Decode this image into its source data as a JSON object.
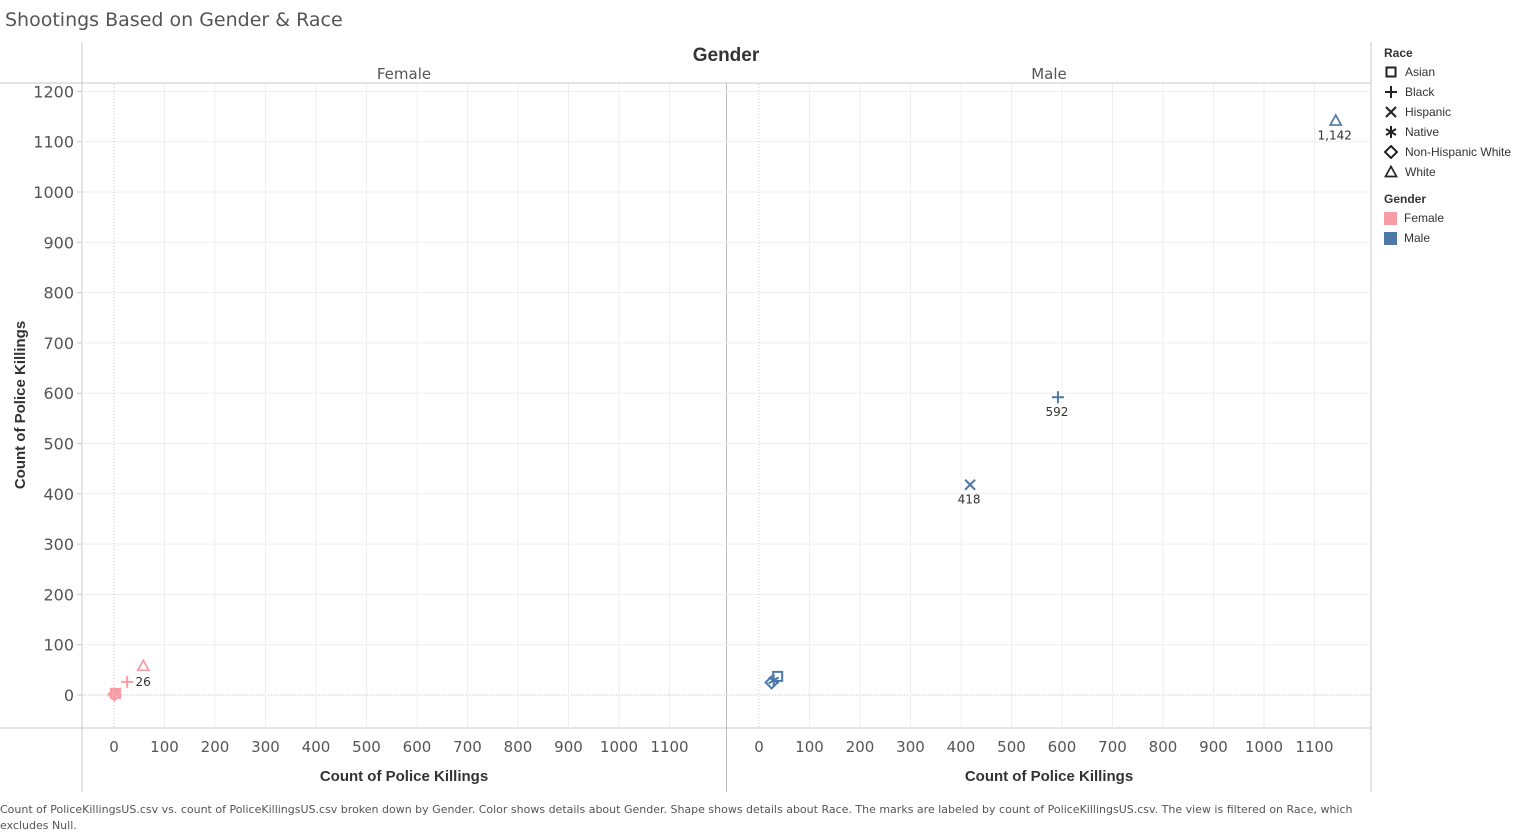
{
  "dashboard_title": "Shootings Based on Gender & Race",
  "caption": "Count of PoliceKillingsUS.csv vs. count of PoliceKillingsUS.csv broken down by Gender.  Color shows details about Gender.  Shape shows details about Race.  The marks are labeled by count of PoliceKillingsUS.csv. The view is filtered on Race, which excludes Null.",
  "legend": {
    "race_title": "Race",
    "races": [
      {
        "label": "Asian",
        "shape": "square"
      },
      {
        "label": "Black",
        "shape": "plus"
      },
      {
        "label": "Hispanic",
        "shape": "cross"
      },
      {
        "label": "Native",
        "shape": "asterisk"
      },
      {
        "label": "Non-Hispanic White",
        "shape": "diamond"
      },
      {
        "label": "White",
        "shape": "triangle"
      }
    ],
    "gender_title": "Gender",
    "genders": [
      {
        "label": "Female",
        "color": "#f89ca6"
      },
      {
        "label": "Male",
        "color": "#4e79a7"
      }
    ]
  },
  "chart_data": {
    "type": "scatter",
    "column_header": "Gender",
    "xlabel": "Count of Police Killings",
    "ylabel": "Count of Police Killings",
    "xlim": [
      -65,
      1210
    ],
    "ylim": [
      -65,
      1220
    ],
    "x_ticks": [
      0,
      100,
      200,
      300,
      400,
      500,
      600,
      700,
      800,
      900,
      1000,
      1100
    ],
    "y_ticks": [
      0,
      100,
      200,
      300,
      400,
      500,
      600,
      700,
      800,
      900,
      1000,
      1100,
      1200
    ],
    "grid": true,
    "legend_position": "right",
    "panels": [
      {
        "name": "Female",
        "color": "#f89ca6",
        "points": [
          {
            "race": "Asian",
            "x": 3,
            "y": 3,
            "label": ""
          },
          {
            "race": "Black",
            "x": 26,
            "y": 26,
            "label": "26"
          },
          {
            "race": "Hispanic",
            "x": 4,
            "y": 4,
            "label": ""
          },
          {
            "race": "Native",
            "x": 2,
            "y": 2,
            "label": ""
          },
          {
            "race": "Non-Hispanic White",
            "x": 1,
            "y": 1,
            "label": ""
          },
          {
            "race": "White",
            "x": 58,
            "y": 58,
            "label": ""
          }
        ]
      },
      {
        "name": "Male",
        "color": "#4e79a7",
        "points": [
          {
            "race": "Asian",
            "x": 37,
            "y": 37,
            "label": ""
          },
          {
            "race": "Black",
            "x": 592,
            "y": 592,
            "label": "592"
          },
          {
            "race": "Hispanic",
            "x": 418,
            "y": 418,
            "label": "418"
          },
          {
            "race": "Native",
            "x": 29,
            "y": 29,
            "label": ""
          },
          {
            "race": "Non-Hispanic White",
            "x": 25,
            "y": 25,
            "label": ""
          },
          {
            "race": "White",
            "x": 1142,
            "y": 1142,
            "label": "1,142"
          }
        ]
      }
    ]
  }
}
